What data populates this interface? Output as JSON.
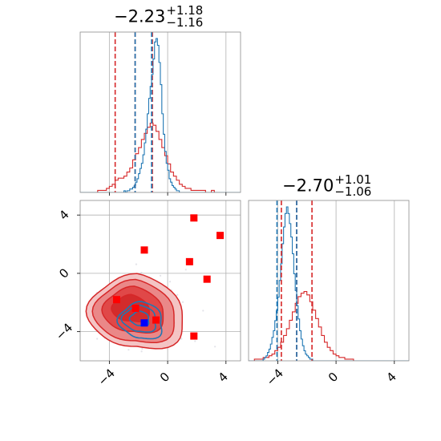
{
  "chart_data": {
    "type": "corner",
    "series": [
      {
        "name": "",
        "color": "#d62728"
      },
      {
        "name": "",
        "color": "#1f77b4"
      }
    ],
    "panels": [
      {
        "type": "histogram",
        "title": {
          "median": "−2.23",
          "plus": "+1.18",
          "minus": "−1.16"
        },
        "xlim": [
          -6,
          5
        ],
        "xticks": [
          -4,
          0,
          4
        ],
        "grid": true,
        "red_hist": {
          "bin_start": -6.0,
          "bin_width": 0.2,
          "counts": [
            0,
            0,
            0,
            0,
            0,
            0,
            1,
            1,
            1,
            2,
            3,
            4,
            6,
            7,
            7,
            8,
            10,
            12,
            16,
            19,
            22,
            26,
            29,
            32,
            34,
            33,
            30,
            26,
            22,
            18,
            14,
            10,
            8,
            6,
            4,
            3,
            2,
            2,
            1,
            1,
            1,
            1,
            1,
            0,
            0,
            1,
            0,
            0,
            0,
            0,
            0,
            0,
            0,
            0,
            0
          ]
        },
        "blue_hist": {
          "bin_start": -6.0,
          "bin_width": 0.1,
          "counts": [
            0,
            0,
            0,
            0,
            0,
            0,
            0,
            0,
            0,
            0,
            0,
            0,
            0,
            0,
            0,
            0,
            0,
            0,
            0,
            0,
            0,
            0,
            0,
            0,
            0,
            0,
            0,
            0,
            0,
            0,
            1,
            0,
            1,
            1,
            2,
            2,
            3,
            4,
            6,
            8,
            11,
            14,
            17,
            22,
            29,
            37,
            46,
            55,
            62,
            69,
            78,
            88,
            90,
            86,
            76,
            63,
            46,
            34,
            24,
            17,
            13,
            8,
            6,
            4,
            3,
            2,
            1,
            1,
            0,
            0,
            0,
            0,
            0,
            0,
            0,
            0,
            0,
            0,
            0,
            0,
            0,
            0,
            0,
            0,
            0,
            0,
            0,
            0,
            0,
            0,
            0,
            0,
            0,
            0,
            0,
            0,
            0,
            0,
            0,
            0,
            0,
            0,
            0,
            0,
            0,
            0,
            0,
            0,
            0,
            0,
            0
          ]
        },
        "red_quantiles": [
          -3.6,
          -2.23,
          -1.05
        ],
        "blue_quantiles": [
          -2.23,
          -1.1
        ]
      },
      {
        "type": "histogram",
        "title": {
          "median": "−2.70",
          "plus": "+1.01",
          "minus": "−1.06"
        },
        "xlim": [
          -6,
          5
        ],
        "xticks": [
          -4,
          0,
          4
        ],
        "grid": true,
        "red_hist": {
          "bin_start": -6.0,
          "bin_width": 0.2,
          "counts": [
            0,
            0,
            1,
            1,
            1,
            2,
            2,
            3,
            4,
            6,
            8,
            11,
            15,
            19,
            24,
            29,
            34,
            38,
            40,
            41,
            39,
            35,
            30,
            25,
            20,
            15,
            11,
            8,
            6,
            4,
            3,
            2,
            2,
            1,
            1,
            1,
            0,
            0,
            0,
            0,
            0,
            0,
            0,
            0,
            0,
            0,
            0,
            0,
            0,
            0,
            0,
            0,
            0,
            0,
            0
          ]
        },
        "blue_hist": {
          "bin_start": -6.0,
          "bin_width": 0.1,
          "counts": [
            0,
            0,
            0,
            0,
            0,
            0,
            0,
            0,
            0,
            0,
            1,
            2,
            3,
            5,
            7,
            10,
            14,
            18,
            24,
            30,
            38,
            48,
            58,
            70,
            80,
            88,
            92,
            88,
            82,
            74,
            64,
            52,
            42,
            33,
            25,
            18,
            13,
            9,
            6,
            4,
            3,
            2,
            1,
            1,
            0,
            0,
            0,
            0,
            0,
            0,
            0,
            0,
            0,
            0,
            0,
            0,
            0,
            0,
            0,
            0,
            0,
            0,
            0,
            0,
            0,
            0,
            0,
            0,
            0,
            0,
            0,
            0,
            0,
            0,
            0,
            0,
            0,
            0,
            0,
            0,
            0,
            0,
            0,
            0,
            0,
            0,
            0,
            0,
            0,
            0,
            0,
            0,
            0,
            0,
            0,
            0,
            0,
            0,
            0,
            0,
            0,
            0,
            0,
            0,
            0,
            0,
            0,
            0,
            0,
            0
          ]
        },
        "red_quantiles": [
          -3.75,
          -2.7,
          -1.65
        ],
        "blue_quantiles": [
          -4.05,
          -2.7
        ]
      },
      {
        "type": "scatter-contour",
        "xlim": [
          -6,
          5
        ],
        "ylim": [
          -6,
          5
        ],
        "xticks": [
          -4,
          0,
          4
        ],
        "yticks": [
          4,
          0,
          -4
        ],
        "grid": true,
        "red_points": [
          [
            1.8,
            3.8
          ],
          [
            3.6,
            2.6
          ],
          [
            -1.6,
            1.6
          ],
          [
            1.5,
            0.8
          ],
          [
            2.7,
            -0.4
          ],
          [
            -3.5,
            -1.8
          ],
          [
            -2.2,
            -2.4
          ],
          [
            -0.8,
            -3.2
          ],
          [
            1.8,
            -4.3
          ]
        ],
        "blue_points": [
          [
            -1.6,
            -3.4
          ]
        ],
        "red_contours": [
          {
            "cx": -2.1,
            "cy": -2.6,
            "rx": 3.3,
            "ry": 2.5
          },
          {
            "cx": -2.2,
            "cy": -2.6,
            "rx": 2.8,
            "ry": 2.1
          },
          {
            "cx": -2.3,
            "cy": -2.5,
            "rx": 2.1,
            "ry": 1.55
          },
          {
            "cx": -2.5,
            "cy": -2.4,
            "rx": 1.3,
            "ry": 0.9
          }
        ],
        "blue_contours": [
          {
            "cx": -1.8,
            "cy": -3.2,
            "rx": 1.5,
            "ry": 1.25
          },
          {
            "cx": -1.9,
            "cy": -3.1,
            "rx": 1.15,
            "ry": 0.9
          },
          {
            "cx": -1.9,
            "cy": -3.1,
            "rx": 0.65,
            "ry": 0.5
          }
        ]
      }
    ]
  }
}
